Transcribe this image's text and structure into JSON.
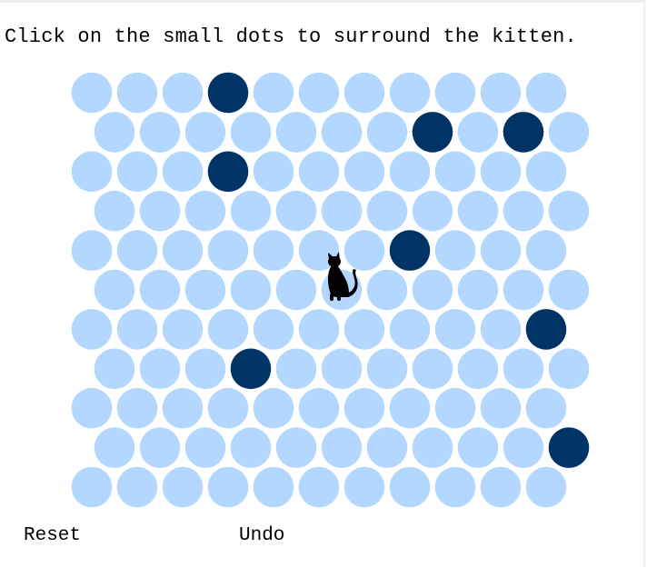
{
  "instructions": "Click on the small dots to surround the kitten.",
  "buttons": {
    "reset": "Reset",
    "undo": "Undo"
  },
  "colors": {
    "empty": "#b3d7ff",
    "blocked": "#003366",
    "kitten": "#000000"
  },
  "grid": {
    "rows": 11,
    "cols": 11,
    "odd_rows_offset_right": true,
    "blocked": [
      [
        0,
        3
      ],
      [
        1,
        7
      ],
      [
        1,
        9
      ],
      [
        2,
        3
      ],
      [
        4,
        7
      ],
      [
        6,
        10
      ],
      [
        7,
        3
      ],
      [
        9,
        10
      ]
    ],
    "kitten": [
      5,
      5
    ]
  }
}
